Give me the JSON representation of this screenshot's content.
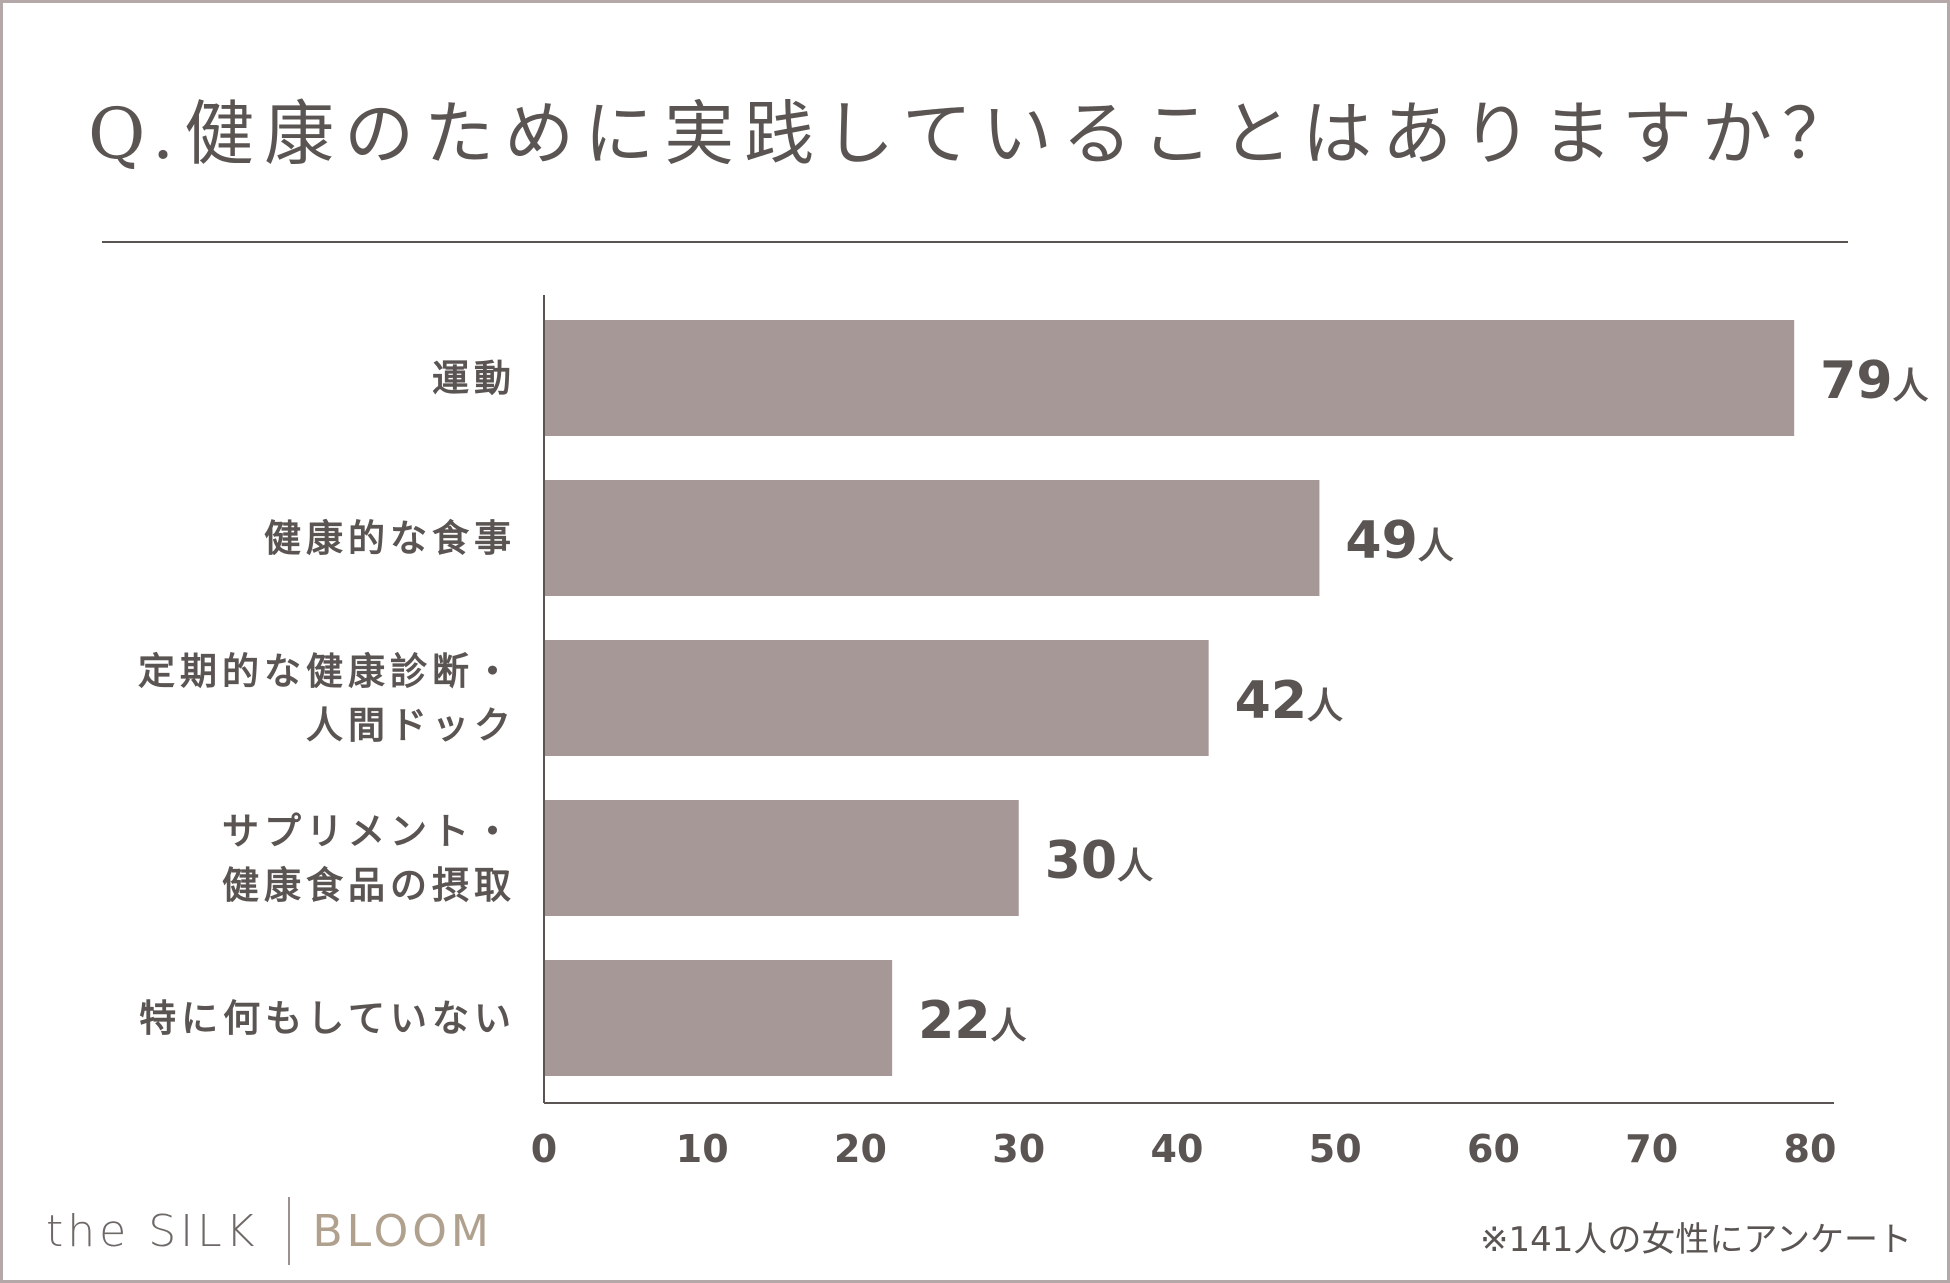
{
  "title": "Q.健康のために実践していることはありますか？",
  "brand": {
    "left": "the SILK",
    "right": "BLOOM"
  },
  "footnote": "※141人の女性にアンケート",
  "colors": {
    "bar": "#a79898",
    "text": "#5a5452",
    "frame": "#b4a9a8",
    "brand_accent": "#b0a08e"
  },
  "chart_data": {
    "type": "bar",
    "orientation": "horizontal",
    "title": "Q.健康のために実践していることはありますか？",
    "xlabel": "",
    "ylabel": "",
    "xlim": [
      0,
      80
    ],
    "xticks": [
      "0",
      "10",
      "20",
      "30",
      "40",
      "50",
      "60",
      "70",
      "80"
    ],
    "grid": false,
    "unit": "人",
    "categories": [
      [
        "運動"
      ],
      [
        "健康的な食事"
      ],
      [
        "定期的な健康診断・",
        "人間ドック"
      ],
      [
        "サプリメント・",
        "健康食品の摂取"
      ],
      [
        "特に何もしていない"
      ]
    ],
    "values": [
      79,
      49,
      42,
      30,
      22
    ]
  }
}
